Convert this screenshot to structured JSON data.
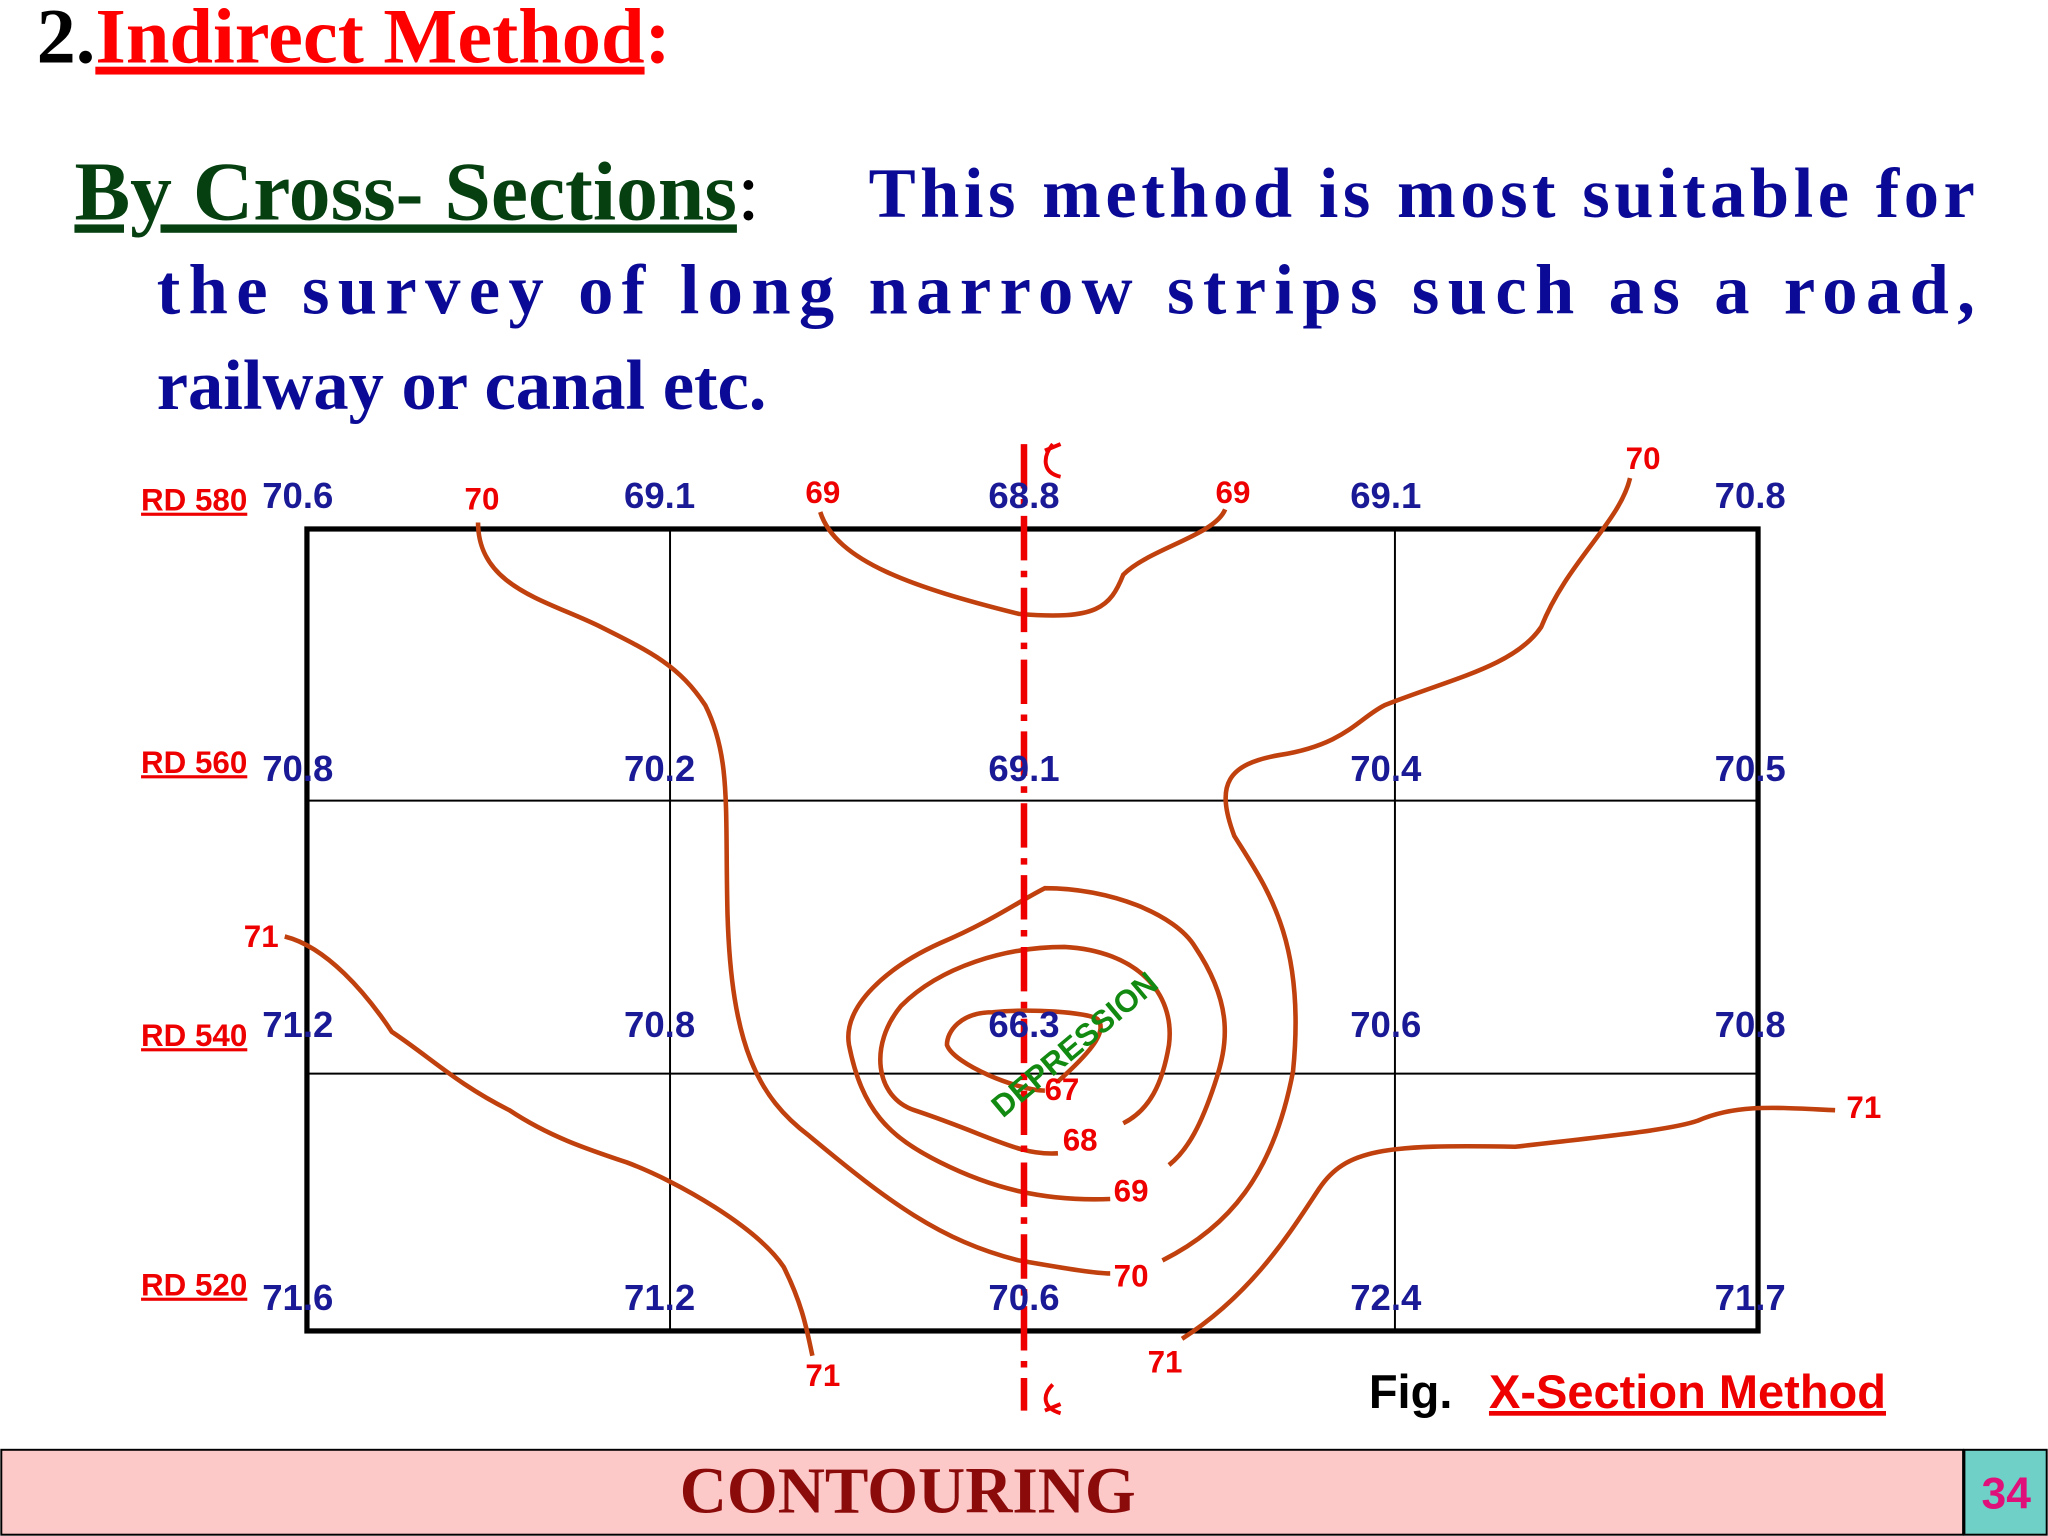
{
  "heading": {
    "number": "2.",
    "title": "Indirect Method",
    "colon": ":"
  },
  "paragraph": {
    "term": "By Cross- Sections",
    "separator": ":",
    "lines": [
      "This method is most suitable for",
      "the survey of long narrow strips such as a road,",
      "railway or canal etc."
    ]
  },
  "figure": {
    "rows": [
      {
        "label": "RD 580",
        "levels": [
          70.6,
          69.1,
          68.8,
          69.1,
          70.8
        ]
      },
      {
        "label": "RD 560",
        "levels": [
          70.8,
          70.2,
          69.1,
          70.4,
          70.5
        ]
      },
      {
        "label": "RD 540",
        "levels": [
          71.2,
          70.8,
          66.3,
          70.6,
          70.8
        ]
      },
      {
        "label": "RD 520",
        "levels": [
          71.6,
          71.2,
          70.6,
          72.4,
          71.7
        ]
      }
    ],
    "contour_labels": [
      70,
      69,
      69,
      70,
      71,
      71,
      67,
      68,
      69,
      70,
      71,
      71
    ],
    "annotation": "DEPRESSION",
    "caption": {
      "prefix": "Fig.",
      "title": "X-Section Method"
    }
  },
  "footer": {
    "title": "CONTOURING",
    "page": "34"
  }
}
